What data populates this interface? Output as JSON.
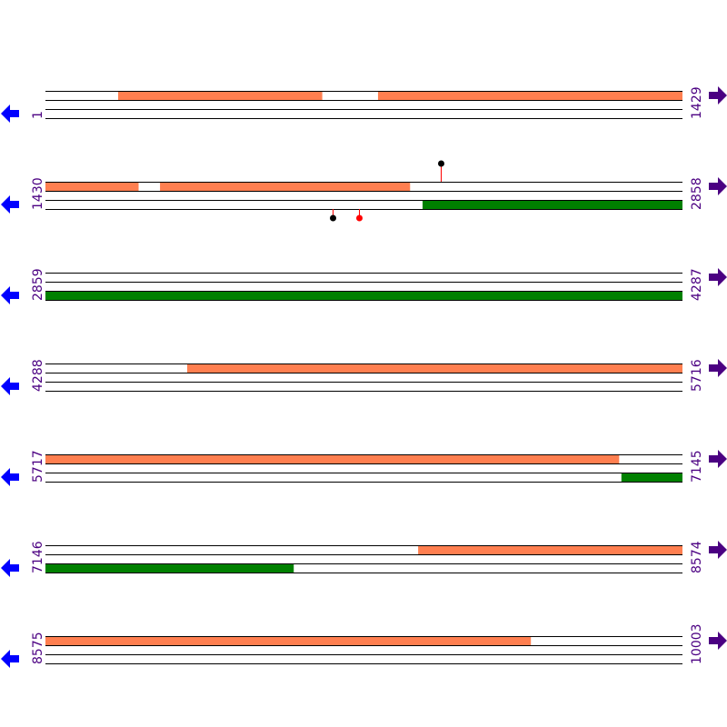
{
  "colors": {
    "top_feature": "#ff7f50",
    "bottom_feature": "#008000",
    "arrow_left": "#0000ff",
    "arrow_right": "#4b0082",
    "label": "#4b0082",
    "stem": "#ff0000"
  },
  "icons": {
    "left": "arrow-left-icon",
    "right": "arrow-right-icon"
  },
  "rows": [
    {
      "start": 1,
      "end": 1429,
      "start_label": "1",
      "end_label": "1429",
      "top": [
        [
          164,
          621
        ],
        [
          747,
          1429
        ]
      ],
      "bottom": [],
      "markers": []
    },
    {
      "start": 1430,
      "end": 2858,
      "start_label": "1430",
      "end_label": "2858",
      "top": [
        [
          1430,
          1638
        ],
        [
          1687,
          2247
        ]
      ],
      "bottom": [
        [
          2276,
          2858
        ]
      ],
      "markers": [
        {
          "pos": 2317,
          "strand": "top",
          "color": "#000000"
        },
        {
          "pos": 2074,
          "strand": "bottom",
          "color": "#000000"
        },
        {
          "pos": 2133,
          "strand": "bottom",
          "color": "#ff0000"
        }
      ]
    },
    {
      "start": 2859,
      "end": 4287,
      "start_label": "2859",
      "end_label": "4287",
      "top": [],
      "bottom": [
        [
          2859,
          4287
        ]
      ],
      "markers": []
    },
    {
      "start": 4288,
      "end": 5716,
      "start_label": "4288",
      "end_label": "5716",
      "top": [
        [
          4606,
          5716
        ]
      ],
      "bottom": [],
      "markers": []
    },
    {
      "start": 5717,
      "end": 7145,
      "start_label": "5717",
      "end_label": "7145",
      "top": [
        [
          5717,
          7003
        ]
      ],
      "bottom": [
        [
          7009,
          7145
        ]
      ],
      "markers": []
    },
    {
      "start": 7146,
      "end": 8574,
      "start_label": "7146",
      "end_label": "8574",
      "top": [
        [
          7982,
          8574
        ]
      ],
      "bottom": [
        [
          7146,
          7702
        ]
      ],
      "markers": []
    },
    {
      "start": 8575,
      "end": 10003,
      "start_label": "8575",
      "end_label": "10003",
      "top": [
        [
          8575,
          9663
        ]
      ],
      "bottom": [],
      "markers": []
    }
  ]
}
